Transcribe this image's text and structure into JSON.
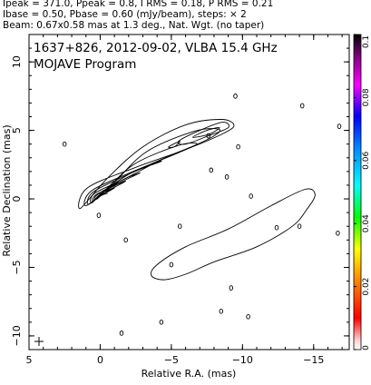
{
  "header": {
    "line1": "Ipeak = 371.0, Ppeak = 0.8, I RMS = 0.18, P RMS = 0.21",
    "line2": "Ibase = 0.50, Pbase = 0.60 (mJy/beam), steps: × 2",
    "line3": "Beam: 0.67x0.58 mas at 1.3 deg., Nat. Wgt. (no taper)"
  },
  "chart_data": {
    "type": "contour",
    "title": "1637+826, 2012-09-02, VLBA 15.4 GHz",
    "subtitle": "MOJAVE Program",
    "xlabel": "Relative R.A. (mas)",
    "ylabel": "Relative Declination (mas)",
    "xlim": [
      5,
      -17.5
    ],
    "ylim": [
      -11,
      12
    ],
    "x_ticks": [
      "5",
      "0",
      "−5",
      "−10",
      "−15"
    ],
    "y_ticks": [
      "10",
      "5",
      "0",
      "−5",
      "−10"
    ],
    "colorbar": {
      "ticks": [
        "0.1",
        "0.08",
        "0.06",
        "0.04",
        "0.02",
        "0"
      ],
      "range": [
        0,
        0.1
      ]
    },
    "peak_position": [
      0,
      0
    ],
    "inner_jet_contours": [
      [
        [
          1.4,
          -0.7
        ],
        [
          0.9,
          0.8
        ],
        [
          -2.5,
          2.3
        ],
        [
          -6.0,
          3.6
        ],
        [
          -8.7,
          4.8
        ],
        [
          -9.4,
          5.4
        ],
        [
          -8.5,
          5.8
        ],
        [
          -6.0,
          5.4
        ],
        [
          -3.0,
          3.8
        ],
        [
          -0.5,
          1.5
        ]
      ],
      [
        [
          1.0,
          -0.5
        ],
        [
          0.6,
          0.6
        ],
        [
          -2.3,
          2.0
        ],
        [
          -5.8,
          3.5
        ],
        [
          -8.0,
          4.6
        ],
        [
          -8.3,
          5.1
        ],
        [
          -6.5,
          4.9
        ],
        [
          -3.2,
          3.4
        ],
        [
          -0.8,
          1.0
        ]
      ],
      [
        [
          0.8,
          -0.4
        ],
        [
          0.5,
          0.5
        ],
        [
          -2.0,
          1.8
        ],
        [
          -5.0,
          3.2
        ],
        [
          -6.8,
          4.0
        ],
        [
          -5.5,
          3.9
        ],
        [
          -2.5,
          2.6
        ],
        [
          -0.5,
          0.8
        ]
      ],
      [
        [
          0.6,
          -0.3
        ],
        [
          0.4,
          0.4
        ],
        [
          -1.6,
          1.4
        ],
        [
          -3.8,
          2.6
        ],
        [
          -4.2,
          2.7
        ],
        [
          -2.2,
          1.9
        ],
        [
          -0.3,
          0.6
        ]
      ],
      [
        [
          0.5,
          -0.2
        ],
        [
          0.3,
          0.3
        ],
        [
          -1.2,
          1.1
        ],
        [
          -2.8,
          1.9
        ],
        [
          -1.6,
          1.4
        ],
        [
          -0.2,
          0.5
        ]
      ],
      [
        [
          0.4,
          -0.1
        ],
        [
          0.2,
          0.3
        ],
        [
          -0.9,
          0.8
        ],
        [
          -1.8,
          1.3
        ],
        [
          -0.9,
          0.9
        ],
        [
          -0.1,
          0.4
        ]
      ],
      [
        [
          0.3,
          -0.05
        ],
        [
          0.1,
          0.25
        ],
        [
          -0.5,
          0.5
        ],
        [
          -1.0,
          0.8
        ],
        [
          -0.4,
          0.5
        ]
      ],
      [
        [
          0.2,
          0.0
        ],
        [
          0.0,
          0.2
        ],
        [
          -0.3,
          0.35
        ],
        [
          -0.5,
          0.4
        ],
        [
          -0.1,
          0.3
        ]
      ]
    ],
    "outer_jet_contour": [
      [
        -3.6,
        -5.6
      ],
      [
        -4.0,
        -4.8
      ],
      [
        -6.0,
        -3.5
      ],
      [
        -9.0,
        -2.2
      ],
      [
        -12.0,
        -0.5
      ],
      [
        -14.4,
        0.7
      ],
      [
        -15.1,
        0.3
      ],
      [
        -14.5,
        -0.8
      ],
      [
        -13.5,
        -2.0
      ],
      [
        -11.0,
        -3.5
      ],
      [
        -8.0,
        -4.6
      ],
      [
        -6.0,
        -5.5
      ],
      [
        -4.5,
        -5.9
      ]
    ],
    "jet_knot_contours": [
      [
        [
          -5.5,
          4.2
        ],
        [
          -7.0,
          5.0
        ],
        [
          -8.6,
          5.6
        ],
        [
          -9.0,
          5.2
        ],
        [
          -7.6,
          4.6
        ],
        [
          -6.0,
          4.0
        ]
      ],
      [
        [
          -6.5,
          4.5
        ],
        [
          -7.5,
          5.0
        ],
        [
          -8.4,
          5.2
        ],
        [
          -7.6,
          4.7
        ]
      ],
      [
        [
          -4.8,
          3.8
        ],
        [
          -5.6,
          4.2
        ],
        [
          -5.2,
          3.8
        ]
      ]
    ],
    "noise_contours": [
      [
        -9.5,
        7.5
      ],
      [
        -14.2,
        6.8
      ],
      [
        -16.8,
        5.3
      ],
      [
        2.5,
        4.0
      ],
      [
        -7.6,
        4.6
      ],
      [
        -9.7,
        3.8
      ],
      [
        -7.8,
        2.1
      ],
      [
        -8.9,
        1.6
      ],
      [
        -10.6,
        0.2
      ],
      [
        -14.0,
        -2.0
      ],
      [
        -16.7,
        -2.5
      ],
      [
        -5.6,
        -2.0
      ],
      [
        -1.8,
        -3.0
      ],
      [
        -5.0,
        -4.8
      ],
      [
        -9.2,
        -6.5
      ],
      [
        -10.4,
        -8.6
      ],
      [
        -4.3,
        -9.0
      ],
      [
        -1.5,
        -9.8
      ],
      [
        -8.5,
        -8.2
      ],
      [
        0.1,
        -1.2
      ],
      [
        -12.4,
        -2.1
      ]
    ],
    "beam": {
      "major": 0.67,
      "minor": 0.58,
      "pa": 1.3
    }
  }
}
